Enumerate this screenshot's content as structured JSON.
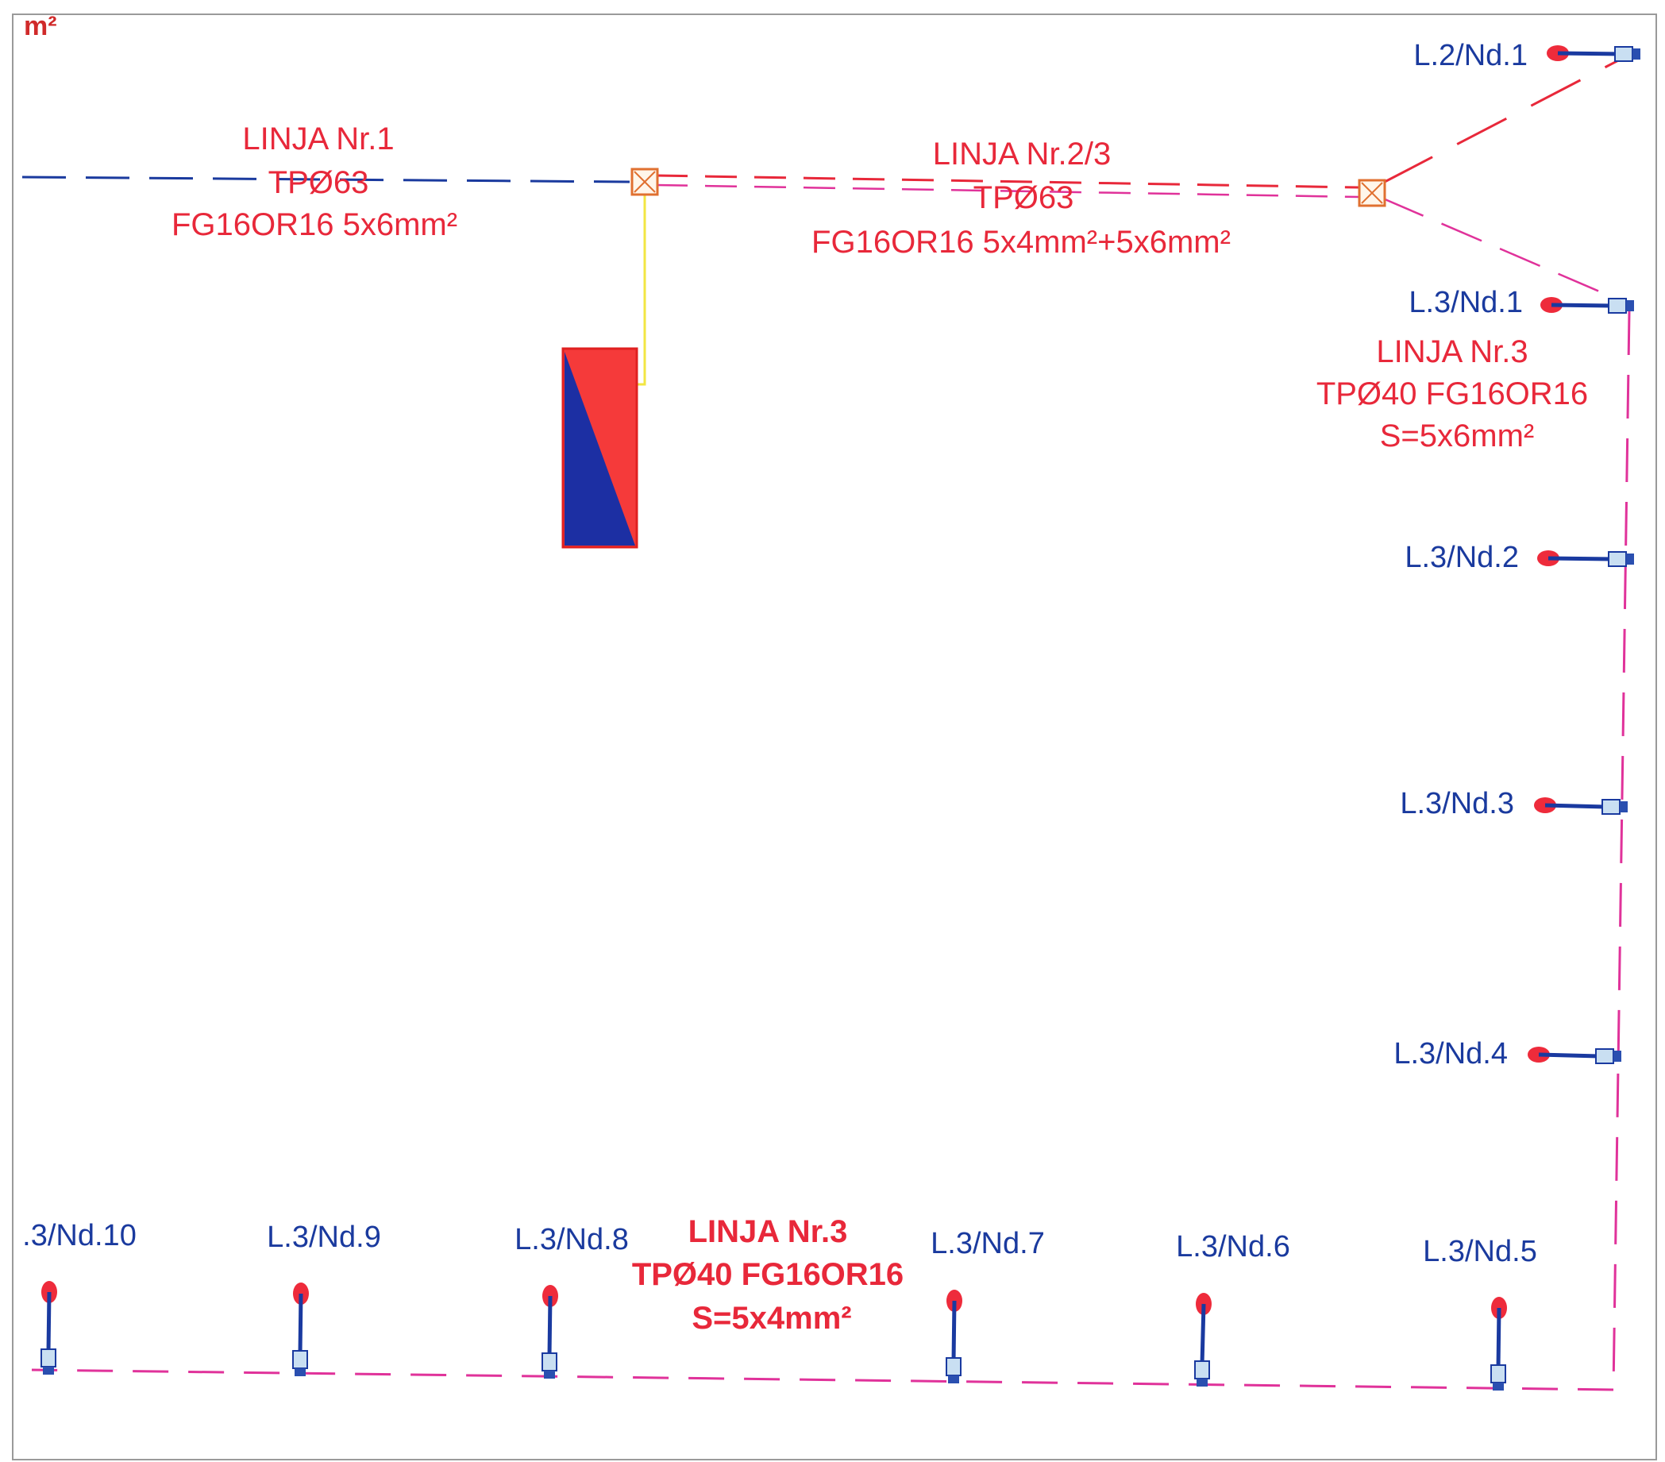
{
  "corner_unit": "m²",
  "colors": {
    "blue_line": "#1a3a9e",
    "red_line": "#e8283a",
    "pink_line": "#e0329a",
    "yellow_line": "#f2e642",
    "node_red": "#ee2b3b",
    "node_blue": "#1a3aa0",
    "box_orange": "#e07030"
  },
  "lines": {
    "line1": {
      "title": "LINJA Nr.1",
      "pipe": "TPØ63",
      "cable": "FG16OR16 5x6mm²"
    },
    "line23": {
      "title": "LINJA Nr.2/3",
      "pipe": "TPØ63",
      "cable": "FG16OR16 5x4mm²+5x6mm²"
    },
    "line3_right": {
      "title": "LINJA Nr.3",
      "pipe_cable": "TPØ40 FG16OR16",
      "section": "S=5x6mm²"
    },
    "line3_bottom": {
      "title": "LINJA Nr.3",
      "pipe_cable": "TPØ40 FG16OR16",
      "section": "S=5x4mm²"
    }
  },
  "nodes": {
    "l2_nd1": "L.2/Nd.1",
    "l3_nd1": "L.3/Nd.1",
    "l3_nd2": "L.3/Nd.2",
    "l3_nd3": "L.3/Nd.3",
    "l3_nd4": "L.3/Nd.4",
    "l3_nd5": "L.3/Nd.5",
    "l3_nd6": "L.3/Nd.6",
    "l3_nd7": "L.3/Nd.7",
    "l3_nd8": "L.3/Nd.8",
    "l3_nd9": "L.3/Nd.9",
    "l3_nd10": ".3/Nd.10"
  }
}
